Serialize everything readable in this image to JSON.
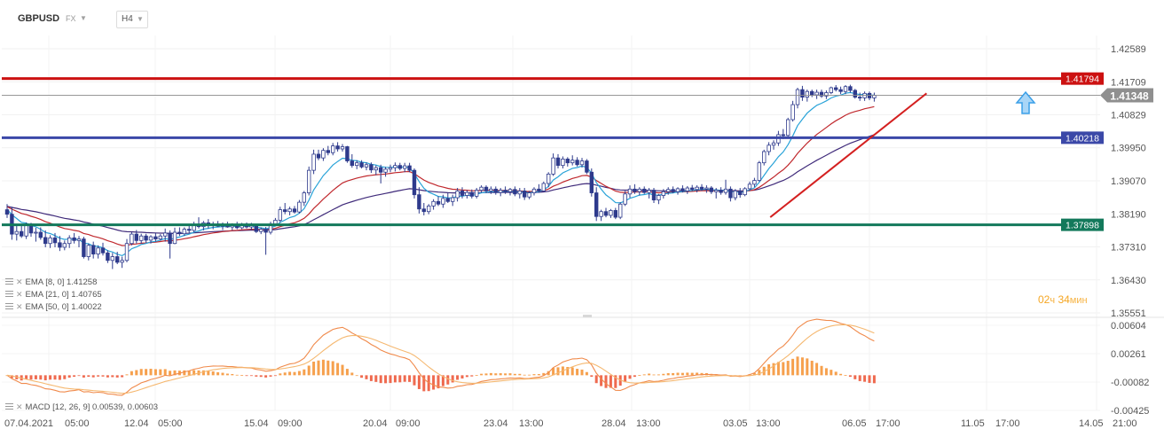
{
  "header": {
    "symbol": "GBPUSD",
    "market": "FX",
    "timeframe": "H4"
  },
  "price_axis": {
    "ticks": [
      "1.42589",
      "1.41709",
      "1.40829",
      "1.39950",
      "1.39070",
      "1.38190",
      "1.37310",
      "1.36430",
      "1.35551"
    ]
  },
  "macd_axis": {
    "ticks": [
      "0.00604",
      "0.00261",
      "-0.00082",
      "-0.00425"
    ]
  },
  "time_axis": {
    "labels": [
      "07.04.2021",
      "05:00",
      "12.04",
      "05:00",
      "15.04",
      "09:00",
      "20.04",
      "09:00",
      "23.04",
      "13:00",
      "28.04",
      "13:00",
      "03.05",
      "13:00",
      "06.05",
      "17:00",
      "11.05",
      "17:00",
      "14.05",
      "21:00"
    ]
  },
  "levels": [
    {
      "label": "1.41794",
      "value": 1.41794,
      "color": "#cc1111"
    },
    {
      "label": "1.40218",
      "value": 1.40218,
      "color": "#3b48a8"
    },
    {
      "label": "1.37898",
      "value": 1.37898,
      "color": "#13795b"
    }
  ],
  "current_price": {
    "label": "1.41348",
    "value": 1.41348
  },
  "indicators": {
    "ema8": "EMA [8, 0]  1.41258",
    "ema21": "EMA [21, 0]  1.40765",
    "ema50": "EMA [50, 0]  1.40022",
    "macd": "MACD [12, 26, 9]  0.00539,  0.00603"
  },
  "timer": {
    "hours": "02",
    "hours_unit": "ч",
    "minutes": "34",
    "minutes_unit": "мин"
  },
  "colors": {
    "bull": "#ffffff",
    "bear": "#2e3a8c",
    "ema8": "#29a3d8",
    "ema21": "#c0282d",
    "ema50": "#3f2a7a",
    "macd_line": "#f08a4b",
    "signal_line": "#f5b870",
    "hist_pos": "#f6a04d",
    "hist_neg": "#ef6a4f",
    "signal_arrow": "#3a9fe8",
    "trendline": "#d42020"
  },
  "chart_data": {
    "type": "candlestick",
    "title": "GBPUSD",
    "timeframe": "H4",
    "ylim": [
      1.35551,
      1.42589
    ],
    "macd_ylim": [
      -0.00425,
      0.00604
    ],
    "trendline": {
      "from_index": 158,
      "from_price": 1.381,
      "to_index": 191,
      "to_price": 1.414
    },
    "candles": [
      [
        1.383,
        1.3845,
        1.3808,
        1.3818
      ],
      [
        1.3818,
        1.3838,
        1.375,
        1.3765
      ],
      [
        1.3765,
        1.3788,
        1.3748,
        1.3772
      ],
      [
        1.3772,
        1.379,
        1.3755,
        1.376
      ],
      [
        1.376,
        1.3796,
        1.3752,
        1.3788
      ],
      [
        1.3788,
        1.3795,
        1.3758,
        1.3768
      ],
      [
        1.3768,
        1.3782,
        1.3745,
        1.377
      ],
      [
        1.377,
        1.3783,
        1.375,
        1.3756
      ],
      [
        1.3756,
        1.3775,
        1.373,
        1.374
      ],
      [
        1.374,
        1.3762,
        1.3728,
        1.3755
      ],
      [
        1.3755,
        1.3768,
        1.373,
        1.3742
      ],
      [
        1.3742,
        1.376,
        1.372,
        1.373
      ],
      [
        1.373,
        1.3748,
        1.3722,
        1.374
      ],
      [
        1.374,
        1.3762,
        1.3728,
        1.3755
      ],
      [
        1.3755,
        1.3768,
        1.374,
        1.3748
      ],
      [
        1.3748,
        1.376,
        1.373,
        1.3752
      ],
      [
        1.3752,
        1.3758,
        1.37,
        1.3705
      ],
      [
        1.3705,
        1.374,
        1.3695,
        1.3735
      ],
      [
        1.3735,
        1.3745,
        1.37,
        1.3712
      ],
      [
        1.3712,
        1.3735,
        1.37,
        1.3728
      ],
      [
        1.3728,
        1.3742,
        1.3708,
        1.3715
      ],
      [
        1.3715,
        1.3722,
        1.3688,
        1.3695
      ],
      [
        1.3695,
        1.3715,
        1.3672,
        1.3705
      ],
      [
        1.3705,
        1.3718,
        1.3685,
        1.369
      ],
      [
        1.369,
        1.3705,
        1.3675,
        1.3695
      ],
      [
        1.3695,
        1.3752,
        1.369,
        1.374
      ],
      [
        1.374,
        1.377,
        1.3735,
        1.3765
      ],
      [
        1.3765,
        1.3776,
        1.374,
        1.3748
      ],
      [
        1.3748,
        1.3766,
        1.374,
        1.376
      ],
      [
        1.376,
        1.3766,
        1.3742,
        1.3749
      ],
      [
        1.3749,
        1.3762,
        1.374,
        1.3758
      ],
      [
        1.3758,
        1.3768,
        1.3745,
        1.3752
      ],
      [
        1.3752,
        1.3765,
        1.3748,
        1.376
      ],
      [
        1.376,
        1.378,
        1.3745,
        1.3768
      ],
      [
        1.3768,
        1.3775,
        1.37,
        1.374
      ],
      [
        1.374,
        1.3782,
        1.3738,
        1.377
      ],
      [
        1.377,
        1.3783,
        1.376,
        1.3766
      ],
      [
        1.3766,
        1.3783,
        1.376,
        1.3778
      ],
      [
        1.3778,
        1.379,
        1.3768,
        1.3775
      ],
      [
        1.3775,
        1.3798,
        1.377,
        1.379
      ],
      [
        1.379,
        1.381,
        1.378,
        1.3785
      ],
      [
        1.3785,
        1.38,
        1.3775,
        1.3795
      ],
      [
        1.3795,
        1.3805,
        1.378,
        1.3788
      ],
      [
        1.3788,
        1.3798,
        1.3778,
        1.3792
      ],
      [
        1.3792,
        1.38,
        1.3784,
        1.3786
      ],
      [
        1.3786,
        1.3796,
        1.3776,
        1.379
      ],
      [
        1.379,
        1.3798,
        1.3782,
        1.3784
      ],
      [
        1.3784,
        1.3794,
        1.3776,
        1.3789
      ],
      [
        1.3789,
        1.3798,
        1.3778,
        1.3782
      ],
      [
        1.3782,
        1.3795,
        1.3778,
        1.379
      ],
      [
        1.379,
        1.3796,
        1.378,
        1.3784
      ],
      [
        1.3784,
        1.3795,
        1.3776,
        1.3788
      ],
      [
        1.3788,
        1.3792,
        1.3768,
        1.3772
      ],
      [
        1.3772,
        1.3783,
        1.3765,
        1.3778
      ],
      [
        1.3778,
        1.3784,
        1.371,
        1.377
      ],
      [
        1.377,
        1.3798,
        1.3764,
        1.3792
      ],
      [
        1.3792,
        1.3808,
        1.3786,
        1.3802
      ],
      [
        1.3802,
        1.3838,
        1.3796,
        1.383
      ],
      [
        1.383,
        1.3848,
        1.3818,
        1.3825
      ],
      [
        1.3825,
        1.3838,
        1.3815,
        1.3832
      ],
      [
        1.3832,
        1.384,
        1.382,
        1.3824
      ],
      [
        1.3824,
        1.3856,
        1.382,
        1.385
      ],
      [
        1.385,
        1.388,
        1.384,
        1.3875
      ],
      [
        1.3875,
        1.3945,
        1.3868,
        1.3935
      ],
      [
        1.3935,
        1.399,
        1.3925,
        1.3978
      ],
      [
        1.3978,
        1.399,
        1.3962,
        1.3968
      ],
      [
        1.3968,
        1.3994,
        1.396,
        1.3988
      ],
      [
        1.3988,
        1.4,
        1.3975,
        1.3982
      ],
      [
        1.3982,
        1.4008,
        1.3975,
        1.4
      ],
      [
        1.4,
        1.401,
        1.3985,
        1.3992
      ],
      [
        1.3992,
        1.4005,
        1.3985,
        1.3998
      ],
      [
        1.3998,
        1.4,
        1.3955,
        1.396
      ],
      [
        1.396,
        1.3978,
        1.3942,
        1.3948
      ],
      [
        1.3948,
        1.3962,
        1.3938,
        1.3955
      ],
      [
        1.3955,
        1.3962,
        1.394,
        1.3944
      ],
      [
        1.3944,
        1.3956,
        1.3935,
        1.395
      ],
      [
        1.395,
        1.3956,
        1.3928,
        1.3936
      ],
      [
        1.3936,
        1.3948,
        1.3922,
        1.3942
      ],
      [
        1.3942,
        1.395,
        1.39,
        1.393
      ],
      [
        1.393,
        1.3944,
        1.3918,
        1.3938
      ],
      [
        1.3938,
        1.395,
        1.393,
        1.3942
      ],
      [
        1.3942,
        1.3956,
        1.3932,
        1.3948
      ],
      [
        1.3948,
        1.3955,
        1.3935,
        1.394
      ],
      [
        1.394,
        1.3955,
        1.393,
        1.3947
      ],
      [
        1.3947,
        1.3955,
        1.393,
        1.3935
      ],
      [
        1.3935,
        1.394,
        1.386,
        1.387
      ],
      [
        1.387,
        1.389,
        1.382,
        1.3832
      ],
      [
        1.3832,
        1.3848,
        1.3815,
        1.3825
      ],
      [
        1.3825,
        1.3845,
        1.3818,
        1.384
      ],
      [
        1.384,
        1.3858,
        1.383,
        1.3852
      ],
      [
        1.3852,
        1.3866,
        1.384,
        1.3845
      ],
      [
        1.3845,
        1.387,
        1.3835,
        1.386
      ],
      [
        1.386,
        1.3875,
        1.3848,
        1.3852
      ],
      [
        1.3852,
        1.387,
        1.384,
        1.3862
      ],
      [
        1.3862,
        1.3888,
        1.3852,
        1.388
      ],
      [
        1.388,
        1.389,
        1.386,
        1.3868
      ],
      [
        1.3868,
        1.3882,
        1.386,
        1.3876
      ],
      [
        1.3876,
        1.3884,
        1.386,
        1.3866
      ],
      [
        1.3866,
        1.3888,
        1.386,
        1.3882
      ],
      [
        1.3882,
        1.3895,
        1.3875,
        1.389
      ],
      [
        1.389,
        1.3895,
        1.3874,
        1.388
      ],
      [
        1.388,
        1.3892,
        1.3872,
        1.3885
      ],
      [
        1.3885,
        1.3892,
        1.387,
        1.3876
      ],
      [
        1.3876,
        1.3888,
        1.3866,
        1.3882
      ],
      [
        1.3882,
        1.3892,
        1.3872,
        1.3878
      ],
      [
        1.3878,
        1.3888,
        1.3868,
        1.3884
      ],
      [
        1.3884,
        1.3892,
        1.3866,
        1.3872
      ],
      [
        1.3872,
        1.3888,
        1.386,
        1.388
      ],
      [
        1.388,
        1.3888,
        1.3856,
        1.3864
      ],
      [
        1.3864,
        1.388,
        1.3858,
        1.3875
      ],
      [
        1.3875,
        1.389,
        1.3868,
        1.3885
      ],
      [
        1.3885,
        1.3898,
        1.3875,
        1.388
      ],
      [
        1.388,
        1.3905,
        1.3878,
        1.39
      ],
      [
        1.39,
        1.393,
        1.389,
        1.3925
      ],
      [
        1.3925,
        1.398,
        1.392,
        1.3968
      ],
      [
        1.3968,
        1.3978,
        1.394,
        1.3948
      ],
      [
        1.3948,
        1.3972,
        1.394,
        1.3965
      ],
      [
        1.3965,
        1.397,
        1.3945,
        1.3955
      ],
      [
        1.3955,
        1.3975,
        1.3948,
        1.3962
      ],
      [
        1.3962,
        1.397,
        1.3945,
        1.395
      ],
      [
        1.395,
        1.3968,
        1.3942,
        1.396
      ],
      [
        1.396,
        1.3965,
        1.3925,
        1.393
      ],
      [
        1.393,
        1.394,
        1.3865,
        1.3875
      ],
      [
        1.3875,
        1.389,
        1.38,
        1.3812
      ],
      [
        1.3812,
        1.383,
        1.38,
        1.3825
      ],
      [
        1.3825,
        1.3835,
        1.381,
        1.3815
      ],
      [
        1.3815,
        1.3832,
        1.3808,
        1.3828
      ],
      [
        1.3828,
        1.3835,
        1.3805,
        1.381
      ],
      [
        1.381,
        1.385,
        1.3805,
        1.3845
      ],
      [
        1.3845,
        1.388,
        1.384,
        1.3872
      ],
      [
        1.3872,
        1.3895,
        1.3862,
        1.3885
      ],
      [
        1.3885,
        1.3898,
        1.3872,
        1.3878
      ],
      [
        1.3878,
        1.389,
        1.3868,
        1.3885
      ],
      [
        1.3885,
        1.3892,
        1.3872,
        1.3876
      ],
      [
        1.3876,
        1.3888,
        1.386,
        1.3882
      ],
      [
        1.3882,
        1.3888,
        1.3848,
        1.3856
      ],
      [
        1.3856,
        1.3872,
        1.3845,
        1.3868
      ],
      [
        1.3868,
        1.3885,
        1.386,
        1.3878
      ],
      [
        1.3878,
        1.389,
        1.387,
        1.3884
      ],
      [
        1.3884,
        1.3892,
        1.3874,
        1.3878
      ],
      [
        1.3878,
        1.389,
        1.387,
        1.3886
      ],
      [
        1.3886,
        1.3895,
        1.3876,
        1.388
      ],
      [
        1.388,
        1.3893,
        1.3872,
        1.3888
      ],
      [
        1.3888,
        1.3896,
        1.388,
        1.3884
      ],
      [
        1.3884,
        1.3895,
        1.3876,
        1.389
      ],
      [
        1.389,
        1.3898,
        1.388,
        1.3885
      ],
      [
        1.3885,
        1.3895,
        1.3875,
        1.3888
      ],
      [
        1.3888,
        1.3893,
        1.3872,
        1.3878
      ],
      [
        1.3878,
        1.3888,
        1.386,
        1.3882
      ],
      [
        1.3882,
        1.389,
        1.387,
        1.3876
      ],
      [
        1.3876,
        1.391,
        1.387,
        1.3885
      ],
      [
        1.3885,
        1.3892,
        1.3852,
        1.3862
      ],
      [
        1.3862,
        1.3885,
        1.3855,
        1.388
      ],
      [
        1.388,
        1.3888,
        1.3862,
        1.387
      ],
      [
        1.387,
        1.389,
        1.3866,
        1.3886
      ],
      [
        1.3886,
        1.3905,
        1.388,
        1.3898
      ],
      [
        1.3898,
        1.3915,
        1.389,
        1.3908
      ],
      [
        1.3908,
        1.396,
        1.3905,
        1.3955
      ],
      [
        1.3955,
        1.399,
        1.3948,
        1.3985
      ],
      [
        1.3985,
        1.401,
        1.3975,
        1.4002
      ],
      [
        1.4002,
        1.4015,
        1.399,
        1.4008
      ],
      [
        1.4008,
        1.404,
        1.4,
        1.403
      ],
      [
        1.403,
        1.4045,
        1.4018,
        1.4028
      ],
      [
        1.4028,
        1.4075,
        1.4022,
        1.407
      ],
      [
        1.407,
        1.412,
        1.4065,
        1.411
      ],
      [
        1.411,
        1.4155,
        1.41,
        1.415
      ],
      [
        1.415,
        1.416,
        1.412,
        1.413
      ],
      [
        1.413,
        1.415,
        1.4118,
        1.4145
      ],
      [
        1.4145,
        1.415,
        1.413,
        1.4136
      ],
      [
        1.4136,
        1.415,
        1.4125,
        1.4143
      ],
      [
        1.4143,
        1.415,
        1.4128,
        1.4133
      ],
      [
        1.4133,
        1.4148,
        1.4125,
        1.4142
      ],
      [
        1.4142,
        1.4158,
        1.4138,
        1.4155
      ],
      [
        1.4155,
        1.4162,
        1.4145,
        1.415
      ],
      [
        1.415,
        1.4158,
        1.4138,
        1.4145
      ],
      [
        1.4145,
        1.4162,
        1.4138,
        1.4158
      ],
      [
        1.4158,
        1.4163,
        1.4142,
        1.4148
      ],
      [
        1.4148,
        1.4152,
        1.4126,
        1.413
      ],
      [
        1.413,
        1.4142,
        1.412,
        1.4128
      ],
      [
        1.4128,
        1.4145,
        1.412,
        1.414
      ],
      [
        1.414,
        1.4145,
        1.4122,
        1.4128
      ],
      [
        1.4128,
        1.4142,
        1.4118,
        1.4135
      ]
    ]
  }
}
